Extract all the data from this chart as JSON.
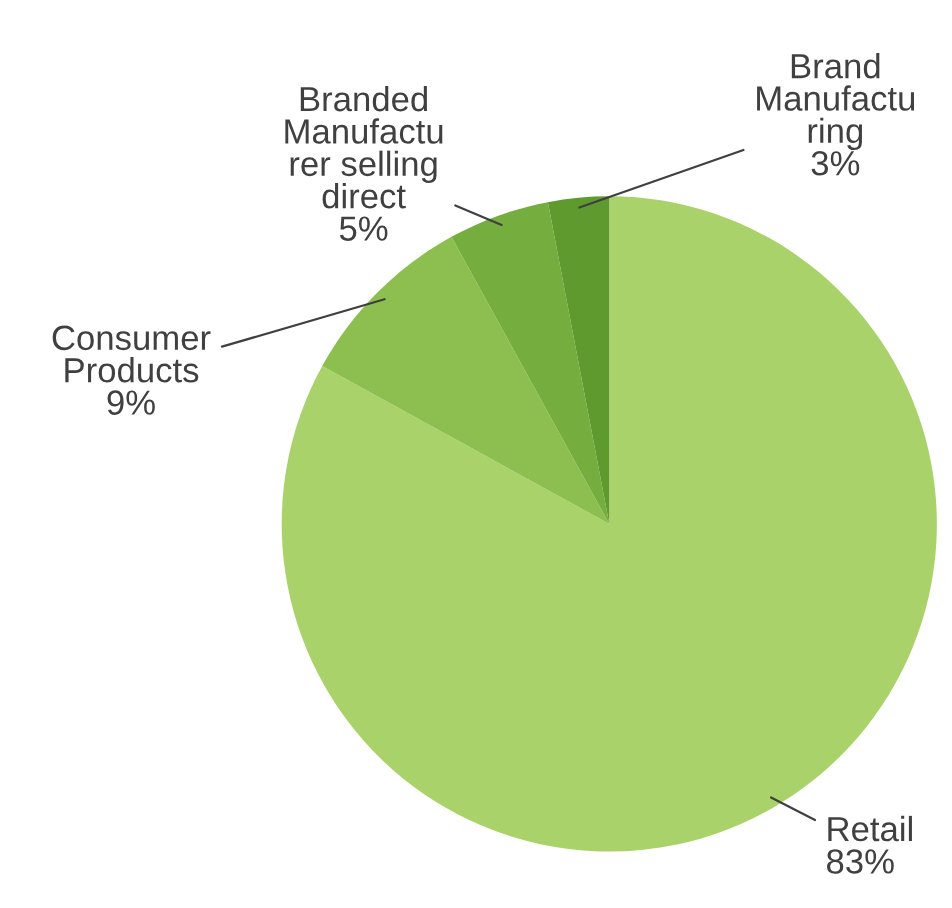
{
  "chart_data": {
    "type": "pie",
    "categories": [
      "Retail",
      "Consumer\nProducts",
      "Branded\nManufactu\nrer selling\ndirect",
      "Brand\nManufactu\nring"
    ],
    "values": [
      83,
      9,
      5,
      3
    ],
    "value_labels": [
      "83%",
      "9%",
      "5%",
      "3%"
    ],
    "colors": [
      "#a9d26a",
      "#8cbf4f",
      "#76ad3f",
      "#5f9a2f"
    ]
  }
}
